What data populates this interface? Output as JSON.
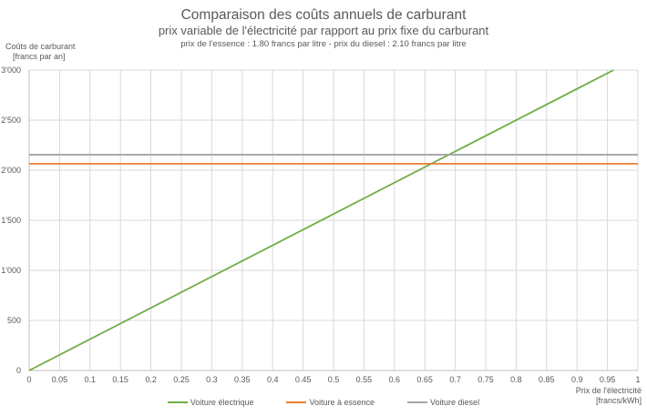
{
  "header": {
    "title": "Comparaison des coûts annuels de carburant",
    "subtitle": "prix variable de l'électricité par rapport au prix fixe du carburant",
    "note": "prix de l'essence : 1.80 francs par litre - prix du diesel : 2.10 francs par litre"
  },
  "axes": {
    "y_label_line1": "Coûts de carburant",
    "y_label_line2": "[francs par an]",
    "x_label_line1": "Prix de l'électricité",
    "x_label_line2": "[francs/kWh]"
  },
  "legend": [
    {
      "label": "Voiture électrique",
      "color": "#70ad47"
    },
    {
      "label": "Voiture à essence",
      "color": "#ed7d31"
    },
    {
      "label": "Voiture diesel",
      "color": "#a5a5a5"
    }
  ],
  "chart_data": {
    "type": "line",
    "title": "Comparaison des coûts annuels de carburant",
    "subtitle": "prix variable de l'électricité par rapport au prix fixe du carburant",
    "annotation": "prix de l'essence : 1.80 francs par litre - prix du diesel : 2.10 francs par litre",
    "xlabel": "Prix de l'électricité [francs/kWh]",
    "ylabel": "Coûts de carburant [francs par an]",
    "xlim": [
      0,
      1
    ],
    "ylim": [
      0,
      3000
    ],
    "x_ticks": [
      "0",
      "0.05",
      "0.1",
      "0.15",
      "0.2",
      "0.25",
      "0.3",
      "0.35",
      "0.4",
      "0.45",
      "0.5",
      "0.55",
      "0.6",
      "0.65",
      "0.7",
      "0.75",
      "0.8",
      "0.85",
      "0.9",
      "0.95",
      "1"
    ],
    "y_ticks": [
      "0",
      "500",
      "1'000",
      "1'500",
      "2'000",
      "2'500",
      "3'000"
    ],
    "grid": true,
    "legend_position": "bottom",
    "series": [
      {
        "name": "Voiture électrique",
        "color": "#70ad47",
        "x": [
          0,
          0.96
        ],
        "values": [
          0,
          3000
        ],
        "note": "linear, approx. 3117 francs per (franc/kWh)"
      },
      {
        "name": "Voiture à essence",
        "color": "#ed7d31",
        "x": [
          0,
          1
        ],
        "values": [
          2065,
          2065
        ]
      },
      {
        "name": "Voiture diesel",
        "color": "#a5a5a5",
        "x": [
          0,
          1
        ],
        "values": [
          2155,
          2155
        ]
      }
    ]
  }
}
